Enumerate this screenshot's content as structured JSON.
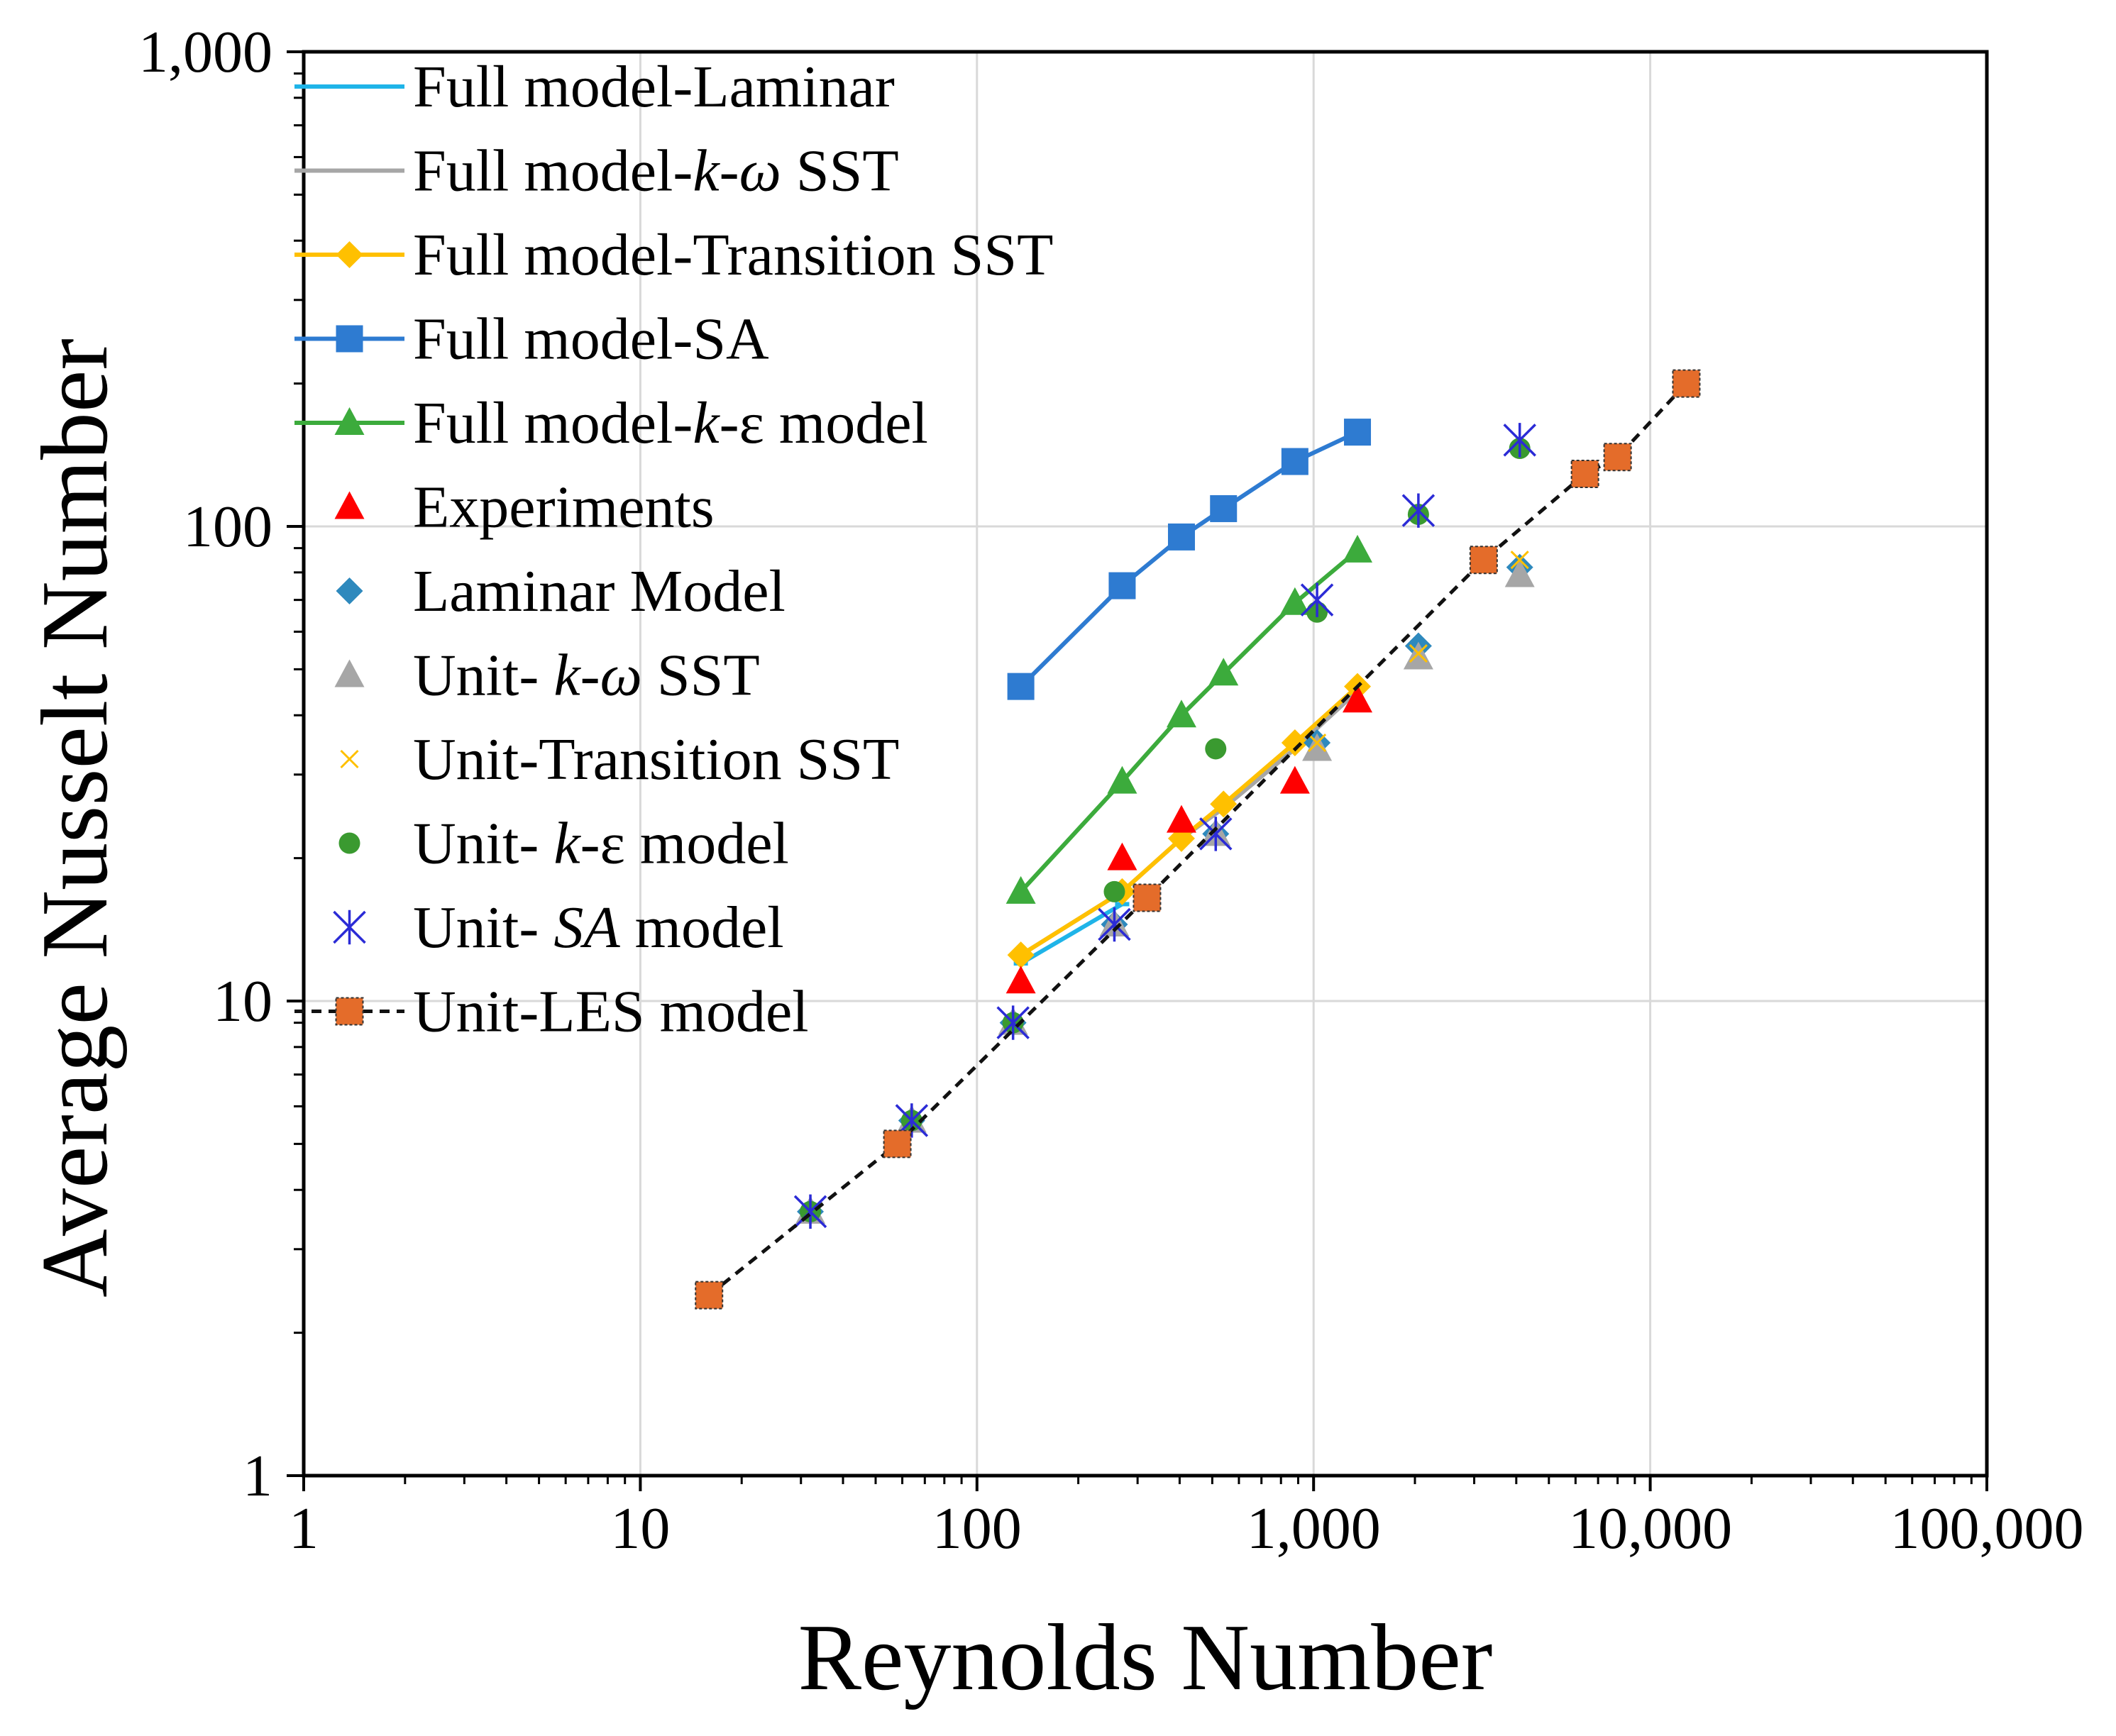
{
  "chart_data": {
    "type": "scatter",
    "title": "",
    "xlabel": "Reynolds Number",
    "ylabel": "Average Nusselt Number",
    "xscale": "log",
    "yscale": "log",
    "xlim": [
      1,
      100000
    ],
    "ylim": [
      1,
      1000
    ],
    "grid": true,
    "legend_position": "top-left",
    "x_ticks": [
      {
        "value": 1,
        "label": "1"
      },
      {
        "value": 10,
        "label": "10"
      },
      {
        "value": 100,
        "label": "100"
      },
      {
        "value": 1000,
        "label": "1,000"
      },
      {
        "value": 10000,
        "label": "10,000"
      },
      {
        "value": 100000,
        "label": "100,000"
      }
    ],
    "y_ticks": [
      {
        "value": 1,
        "label": "1"
      },
      {
        "value": 10,
        "label": "10"
      },
      {
        "value": 100,
        "label": "100"
      },
      {
        "value": 1000,
        "label": "1,000"
      }
    ],
    "series": [
      {
        "name": "Full model-Laminar",
        "legend": [
          "Full model-Laminar"
        ],
        "color": "#1fb4e8",
        "marker": "dash",
        "line": "solid",
        "x": [
          135,
          270
        ],
        "y": [
          12,
          16
        ]
      },
      {
        "name": "Full model-k-ω SST",
        "legend": [
          "Full model-",
          "k",
          "-",
          "ω",
          " SST"
        ],
        "color": "#a6a6a6",
        "marker": "none",
        "line": "solid",
        "x": [
          135,
          270,
          405,
          540,
          880,
          1350
        ],
        "y": [
          12.5,
          17,
          22,
          25.5,
          34,
          45
        ]
      },
      {
        "name": "Full model-Transition SST",
        "legend": [
          "Full model-Transition SST"
        ],
        "color": "#ffc000",
        "marker": "diamond",
        "line": "solid",
        "x": [
          135,
          270,
          405,
          540,
          880,
          1350
        ],
        "y": [
          12.5,
          17,
          22,
          26,
          35,
          46
        ]
      },
      {
        "name": "Full model-SA",
        "legend": [
          "Full model-SA"
        ],
        "color": "#2e7bd1",
        "marker": "square",
        "line": "solid",
        "x": [
          135,
          270,
          405,
          540,
          880,
          1350
        ],
        "y": [
          46,
          75,
          95,
          109,
          137,
          158
        ]
      },
      {
        "name": "Full model-k-ε model",
        "legend": [
          "Full model-",
          "k",
          "-ε model"
        ],
        "color": "#3cab3c",
        "marker": "triangle",
        "line": "solid",
        "x": [
          135,
          270,
          405,
          540,
          880,
          1350
        ],
        "y": [
          17,
          29,
          40,
          49,
          69,
          89
        ]
      },
      {
        "name": "Experiments",
        "legend": [
          "Experiments"
        ],
        "color": "#ff0000",
        "marker": "triangle",
        "line": "none",
        "x": [
          135,
          270,
          405,
          880,
          1350
        ],
        "y": [
          11,
          20,
          24,
          29,
          43
        ]
      },
      {
        "name": "Laminar Model",
        "legend": [
          "Laminar Model"
        ],
        "color": "#2e89bd",
        "marker": "diamond",
        "line": "none",
        "x": [
          32,
          64,
          128,
          256,
          512,
          1024,
          2048,
          4096
        ],
        "y": [
          3.6,
          5.6,
          9,
          14.5,
          22.5,
          35,
          56,
          82
        ]
      },
      {
        "name": "Unit- k-ω SST",
        "legend": [
          "Unit- ",
          "k",
          "-",
          "ω",
          " SST"
        ],
        "color": "#a6a6a6",
        "marker": "triangle",
        "line": "none",
        "x": [
          32,
          64,
          128,
          256,
          512,
          1024,
          2048,
          4096
        ],
        "y": [
          3.6,
          5.6,
          9,
          14.5,
          22.5,
          34,
          53,
          79
        ]
      },
      {
        "name": "Unit-Transition SST",
        "legend": [
          "Unit-Transition SST"
        ],
        "color": "#ffc000",
        "marker": "x",
        "line": "none",
        "x": [
          32,
          64,
          128,
          256,
          512,
          1024,
          2048,
          4096
        ],
        "y": [
          3.6,
          5.6,
          9,
          14.5,
          22.5,
          35,
          54,
          85
        ]
      },
      {
        "name": "Unit- k-ε model",
        "legend": [
          "Unit- ",
          "k",
          "-ε model"
        ],
        "color": "#3a9a30",
        "marker": "circle",
        "line": "none",
        "x": [
          32,
          64,
          128,
          256,
          512,
          1024,
          2048,
          4096
        ],
        "y": [
          3.6,
          5.6,
          9,
          17,
          34,
          66,
          106,
          146
        ]
      },
      {
        "name": "Unit- SA model",
        "legend": [
          "Unit- ",
          "SA",
          " model"
        ],
        "color": "#2b2bd6",
        "marker": "asterisk",
        "line": "none",
        "x": [
          32,
          64,
          128,
          256,
          512,
          1024,
          2048,
          4096
        ],
        "y": [
          3.6,
          5.6,
          9,
          14.5,
          22.5,
          70,
          108,
          152
        ]
      },
      {
        "name": "Unit-LES model",
        "legend": [
          "Unit-LES model"
        ],
        "color": "#e46c2a",
        "marker": "square",
        "line": "dashed",
        "x": [
          16,
          58,
          320,
          3200,
          6400,
          8000,
          12800
        ],
        "y": [
          2.4,
          5,
          16.5,
          85,
          129,
          140,
          200
        ]
      }
    ]
  }
}
